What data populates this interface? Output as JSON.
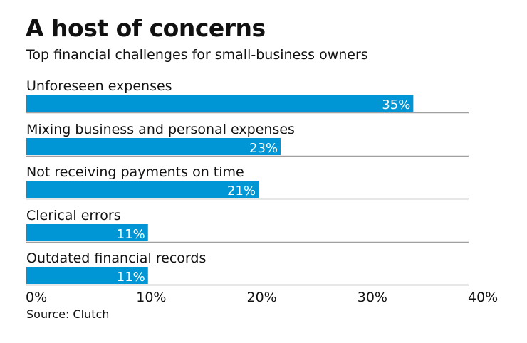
{
  "chart_data": {
    "type": "bar",
    "orientation": "horizontal",
    "title": "A host of concerns",
    "subtitle": "Top financial challenges for small-business owners",
    "source": "Source: Clutch",
    "categories": [
      "Unforeseen expenses",
      "Mixing business and personal expenses",
      "Not receiving payments on time",
      "Clerical errors",
      "Outdated financial records"
    ],
    "values": [
      35,
      23,
      21,
      11,
      11
    ],
    "value_labels": [
      "35%",
      "23%",
      "21%",
      "11%",
      "11%"
    ],
    "xlim": [
      0,
      40
    ],
    "xticks": [
      0,
      10,
      20,
      30,
      40
    ],
    "xtick_labels": [
      "0%",
      "10%",
      "20%",
      "30%",
      "40%"
    ],
    "grid": false,
    "bar_color": "#0096d6",
    "separator_color": "#a0a0a0"
  }
}
